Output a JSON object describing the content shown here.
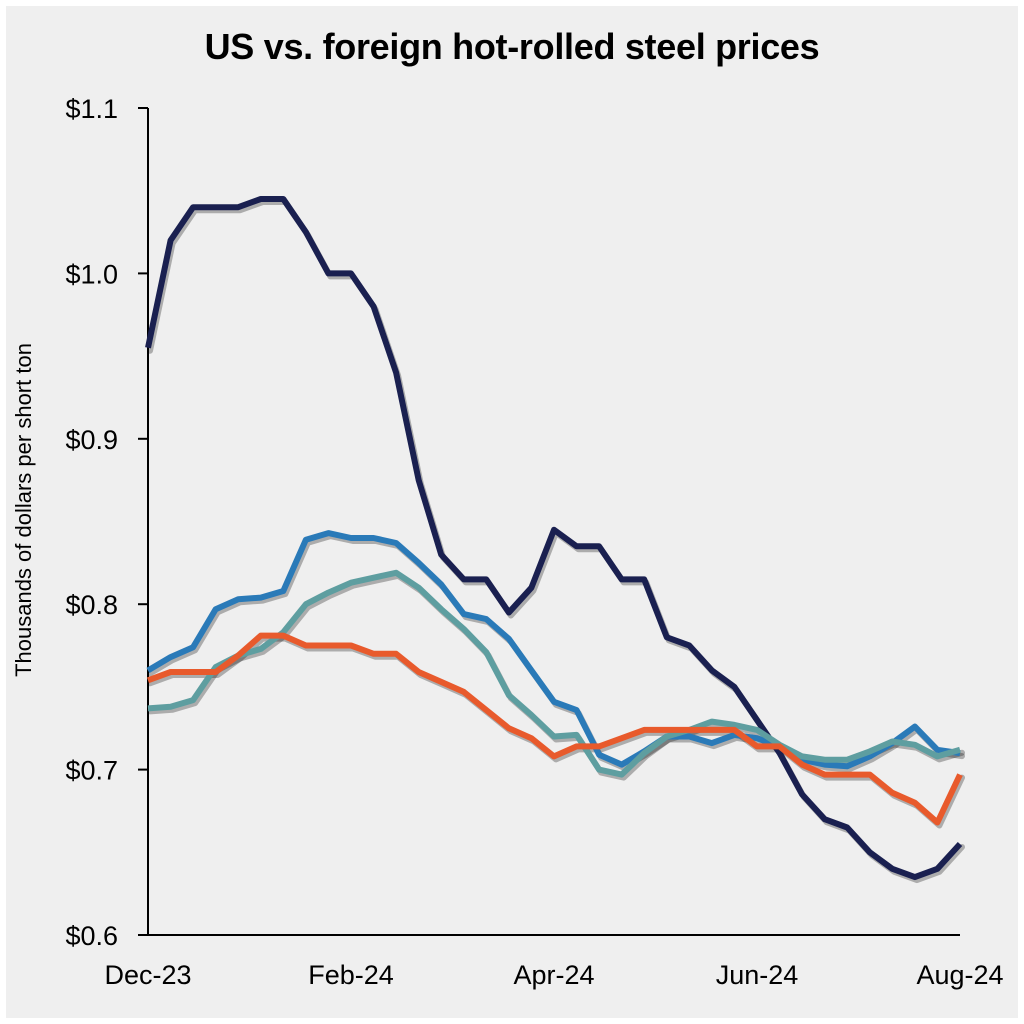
{
  "chart_data": {
    "type": "line",
    "title": "US vs. foreign hot-rolled steel prices",
    "xlabel": "",
    "ylabel": "Thousands of dollars per short ton",
    "x_tick_labels": [
      "Dec-23",
      "Feb-24",
      "Apr-24",
      "Jun-24",
      "Aug-24"
    ],
    "x_tick_positions": [
      0,
      8.5,
      17,
      25.5,
      34
    ],
    "y_tick_values": [
      0.6,
      0.7,
      0.8,
      0.9,
      1.0,
      1.1
    ],
    "y_tick_labels": [
      "$0.6",
      "$0.7",
      "$0.8",
      "$0.9",
      "$1.0",
      "$1.1"
    ],
    "ylim": [
      0.6,
      1.1
    ],
    "x_range": [
      0,
      34
    ],
    "grid": false,
    "legend": "none",
    "series": [
      {
        "color": "#1a2050",
        "values": [
          0.955,
          1.02,
          1.04,
          1.04,
          1.04,
          1.045,
          1.045,
          1.025,
          1.0,
          1.0,
          0.98,
          0.94,
          0.875,
          0.83,
          0.815,
          0.815,
          0.795,
          0.81,
          0.845,
          0.835,
          0.835,
          0.815,
          0.815,
          0.78,
          0.775,
          0.76,
          0.75,
          0.73,
          0.71,
          0.685,
          0.67,
          0.665,
          0.65,
          0.64,
          0.635,
          0.64,
          0.655
        ]
      },
      {
        "color": "#2a7ab8",
        "values": [
          0.76,
          0.768,
          0.774,
          0.797,
          0.803,
          0.804,
          0.808,
          0.839,
          0.843,
          0.84,
          0.84,
          0.837,
          0.825,
          0.812,
          0.794,
          0.791,
          0.779,
          0.76,
          0.741,
          0.736,
          0.709,
          0.703,
          0.711,
          0.72,
          0.72,
          0.716,
          0.721,
          0.719,
          0.714,
          0.706,
          0.703,
          0.702,
          0.708,
          0.716,
          0.726,
          0.712,
          0.71
        ]
      },
      {
        "color": "#5e9ea0",
        "values": [
          0.737,
          0.738,
          0.742,
          0.762,
          0.769,
          0.773,
          0.783,
          0.8,
          0.807,
          0.813,
          0.816,
          0.819,
          0.81,
          0.797,
          0.785,
          0.771,
          0.745,
          0.733,
          0.72,
          0.721,
          0.7,
          0.697,
          0.71,
          0.72,
          0.724,
          0.729,
          0.727,
          0.724,
          0.715,
          0.708,
          0.706,
          0.706,
          0.711,
          0.717,
          0.715,
          0.708,
          0.712
        ]
      },
      {
        "color": "#e85a2c",
        "values": [
          0.754,
          0.759,
          0.759,
          0.759,
          0.769,
          0.781,
          0.781,
          0.775,
          0.775,
          0.775,
          0.77,
          0.77,
          0.759,
          0.753,
          0.747,
          0.736,
          0.725,
          0.719,
          0.708,
          0.714,
          0.714,
          0.719,
          0.724,
          0.724,
          0.724,
          0.724,
          0.724,
          0.714,
          0.714,
          0.703,
          0.697,
          0.697,
          0.697,
          0.686,
          0.68,
          0.668,
          0.697
        ]
      }
    ]
  }
}
